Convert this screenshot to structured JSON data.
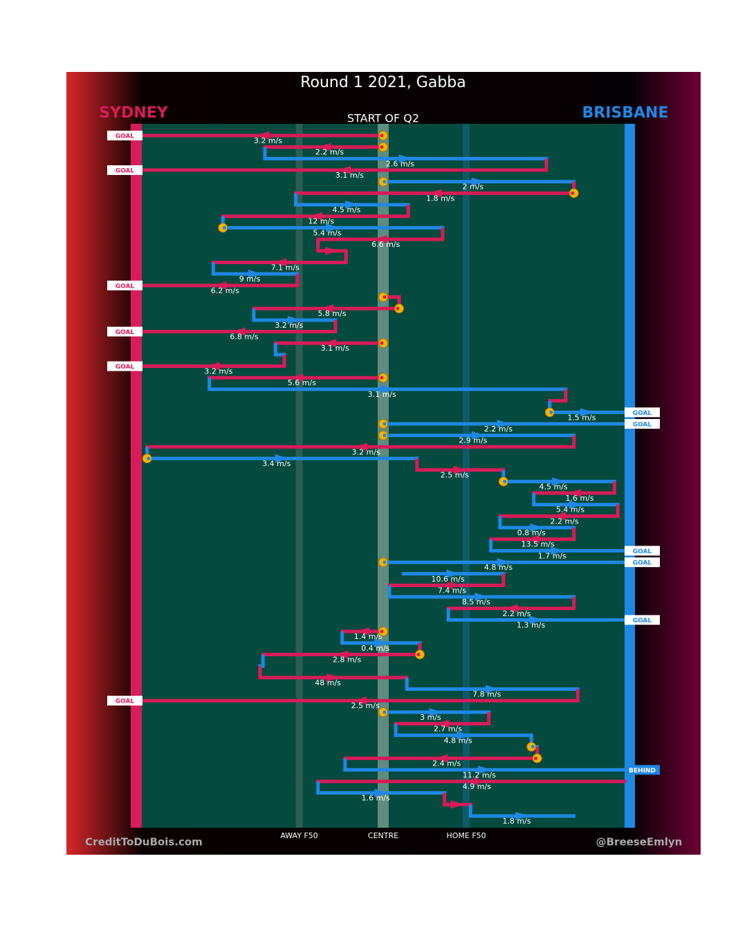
{
  "title": "Round 1 2021, Gabba",
  "period": "START OF Q2",
  "teams": [
    {
      "name": "SYDNEY",
      "color": "#d81b5a"
    },
    {
      "name": "BRISBANE",
      "color": "#1e88e5"
    }
  ],
  "field": {
    "xlim": [
      0,
      100
    ],
    "markers": [
      {
        "value": 32.6,
        "label": "AWAY F50"
      },
      {
        "value": 50,
        "label": "CENTRE"
      },
      {
        "value": 67.2,
        "label": "HOME F50"
      }
    ]
  },
  "segments": [
    {
      "team": 0,
      "from": 50,
      "to": 0,
      "speed": "3.2 m/s",
      "stoppage": true,
      "result": "GOAL"
    },
    {
      "team": 0,
      "from": 50,
      "to": 25.5,
      "speed": "2.2 m/s",
      "stoppage": true
    },
    {
      "team": 1,
      "from": 25.5,
      "to": 83.8,
      "speed": "2.6 m/s"
    },
    {
      "team": 0,
      "from": 83.8,
      "to": 0,
      "speed": "3.1 m/s",
      "result": "GOAL"
    },
    {
      "team": 1,
      "from": 50,
      "to": 89.5,
      "speed": "2 m/s",
      "stoppage": true
    },
    {
      "team": 0,
      "from": 89.5,
      "to": 31.9,
      "speed": "1.8 m/s",
      "stoppage": true
    },
    {
      "team": 1,
      "from": 31.9,
      "to": 55.2,
      "speed": "4.5 m/s"
    },
    {
      "team": 0,
      "from": 55.2,
      "to": 16.8,
      "speed": "12 m/s"
    },
    {
      "team": 1,
      "from": 16.8,
      "to": 62.3,
      "speed": "5.4 m/s",
      "stoppage": true
    },
    {
      "team": 0,
      "from": 62.3,
      "to": 36.5,
      "speed": "6.6 m/s"
    },
    {
      "team": 0,
      "from": 36.5,
      "to": 42.3
    },
    {
      "team": 0,
      "from": 42.3,
      "to": 14.8,
      "speed": "7.1 m/s"
    },
    {
      "team": 1,
      "from": 14.8,
      "to": 32.2,
      "speed": "9 m/s"
    },
    {
      "team": 0,
      "from": 32.2,
      "to": 0,
      "speed": "6.2 m/s",
      "result": "GOAL"
    },
    {
      "team": 0,
      "from": 50,
      "to": 53.3,
      "stoppage": true
    },
    {
      "team": 0,
      "from": 53.3,
      "to": 23.2,
      "speed": "5.8 m/s",
      "stoppage": true
    },
    {
      "team": 1,
      "from": 23.2,
      "to": 40.1,
      "speed": "3.2 m/s"
    },
    {
      "team": 0,
      "from": 40.1,
      "to": 0,
      "speed": "6.8 m/s",
      "result": "GOAL"
    },
    {
      "team": 0,
      "from": 50,
      "to": 27.7,
      "speed": "3.1 m/s",
      "stoppage": true
    },
    {
      "team": 1,
      "from": 27.7,
      "to": 29.5
    },
    {
      "team": 0,
      "from": 29.5,
      "to": 0,
      "speed": "3.2 m/s",
      "result": "GOAL"
    },
    {
      "team": 0,
      "from": 50,
      "to": 14.0,
      "speed": "5.6 m/s",
      "stoppage": true
    },
    {
      "team": 1,
      "from": 14.0,
      "to": 87.8,
      "speed": "3.1 m/s"
    },
    {
      "team": 0,
      "from": 87.8,
      "to": 84.5
    },
    {
      "team": 1,
      "from": 84.5,
      "to": 100,
      "speed": "1.5 m/s",
      "stoppage": true,
      "result": "GOAL"
    },
    {
      "team": 1,
      "from": 50,
      "to": 100,
      "speed": "2.2 m/s",
      "stoppage": true,
      "result": "GOAL"
    },
    {
      "team": 1,
      "from": 50,
      "to": 89.5,
      "speed": "2.9 m/s",
      "stoppage": true
    },
    {
      "team": 0,
      "from": 89.5,
      "to": 1.1,
      "speed": "3.2 m/s"
    },
    {
      "team": 1,
      "from": 1.1,
      "to": 57.0,
      "speed": "3.4 m/s",
      "stoppage": true
    },
    {
      "team": 0,
      "from": 57.0,
      "to": 74.9,
      "speed": "2.5 m/s"
    },
    {
      "team": 1,
      "from": 74.9,
      "to": 97.9,
      "speed": "4.5 m/s",
      "stoppage": true
    },
    {
      "team": 0,
      "from": 97.9,
      "to": 81.2,
      "speed": "1.6 m/s"
    },
    {
      "team": 1,
      "from": 81.2,
      "to": 98.6,
      "speed": "5.4 m/s"
    },
    {
      "team": 0,
      "from": 98.6,
      "to": 74.2,
      "speed": "2.2 m/s"
    },
    {
      "team": 1,
      "from": 74.2,
      "to": 89.5,
      "speed": "0.8 m/s"
    },
    {
      "team": 0,
      "from": 89.5,
      "to": 72.3,
      "speed": "13.5 m/s"
    },
    {
      "team": 1,
      "from": 72.3,
      "to": 100,
      "speed": "1.7 m/s",
      "result": "GOAL"
    },
    {
      "team": 1,
      "from": 50,
      "to": 100,
      "speed": "4.8 m/s",
      "stoppage": true,
      "result": "GOAL"
    },
    {
      "team": 1,
      "from": 54.2,
      "to": 74.9,
      "speed": "10.6 m/s"
    },
    {
      "team": 0,
      "from": 74.9,
      "to": 51.3,
      "speed": "7.4 m/s"
    },
    {
      "team": 1,
      "from": 51.3,
      "to": 89.5,
      "speed": "8.5 m/s"
    },
    {
      "team": 0,
      "from": 89.5,
      "to": 63.5,
      "speed": "2.2 m/s"
    },
    {
      "team": 1,
      "from": 63.5,
      "to": 100,
      "speed": "1.3 m/s",
      "result": "GOAL"
    },
    {
      "team": 0,
      "from": 50,
      "to": 41.5,
      "speed": "1.4 m/s",
      "stoppage": true
    },
    {
      "team": 1,
      "from": 41.5,
      "to": 57.6,
      "speed": "0.4 m/s"
    },
    {
      "team": 0,
      "from": 57.6,
      "to": 25.1,
      "speed": "2.8 m/s",
      "stoppage": true
    },
    {
      "team": 1,
      "from": 25.1,
      "to": 24.5
    },
    {
      "team": 0,
      "from": 24.5,
      "to": 54.9,
      "speed": "48 m/s"
    },
    {
      "team": 1,
      "from": 54.9,
      "to": 90.3,
      "speed": "7.8 m/s"
    },
    {
      "team": 0,
      "from": 90.3,
      "to": 0,
      "speed": "2.5 m/s",
      "result": "GOAL"
    },
    {
      "team": 1,
      "from": 50,
      "to": 71.9,
      "speed": "3 m/s",
      "stoppage": true
    },
    {
      "team": 0,
      "from": 71.9,
      "to": 52.6,
      "speed": "2.7 m/s"
    },
    {
      "team": 1,
      "from": 52.6,
      "to": 80.7,
      "speed": "4.8 m/s"
    },
    {
      "team": 1,
      "from": 80.7,
      "to": 81.9,
      "stoppage": true
    },
    {
      "team": 0,
      "from": 81.9,
      "to": 42.1,
      "speed": "2.4 m/s",
      "stoppage": true
    },
    {
      "team": 1,
      "from": 42.1,
      "to": 100,
      "speed": "11.2 m/s",
      "result": "BEHIND"
    },
    {
      "team": 0,
      "from": 100,
      "to": 36.5,
      "speed": "4.9 m/s"
    },
    {
      "team": 1,
      "from": 36.5,
      "to": 62.7,
      "speed": "1.6 m/s"
    },
    {
      "team": 0,
      "from": 62.7,
      "to": 68.1
    },
    {
      "team": 1,
      "from": 68.1,
      "to": 89.5,
      "speed": "1.8 m/s"
    }
  ],
  "credits": [
    "CreditToDuBois.com",
    "@BreeseEmlyn"
  ]
}
